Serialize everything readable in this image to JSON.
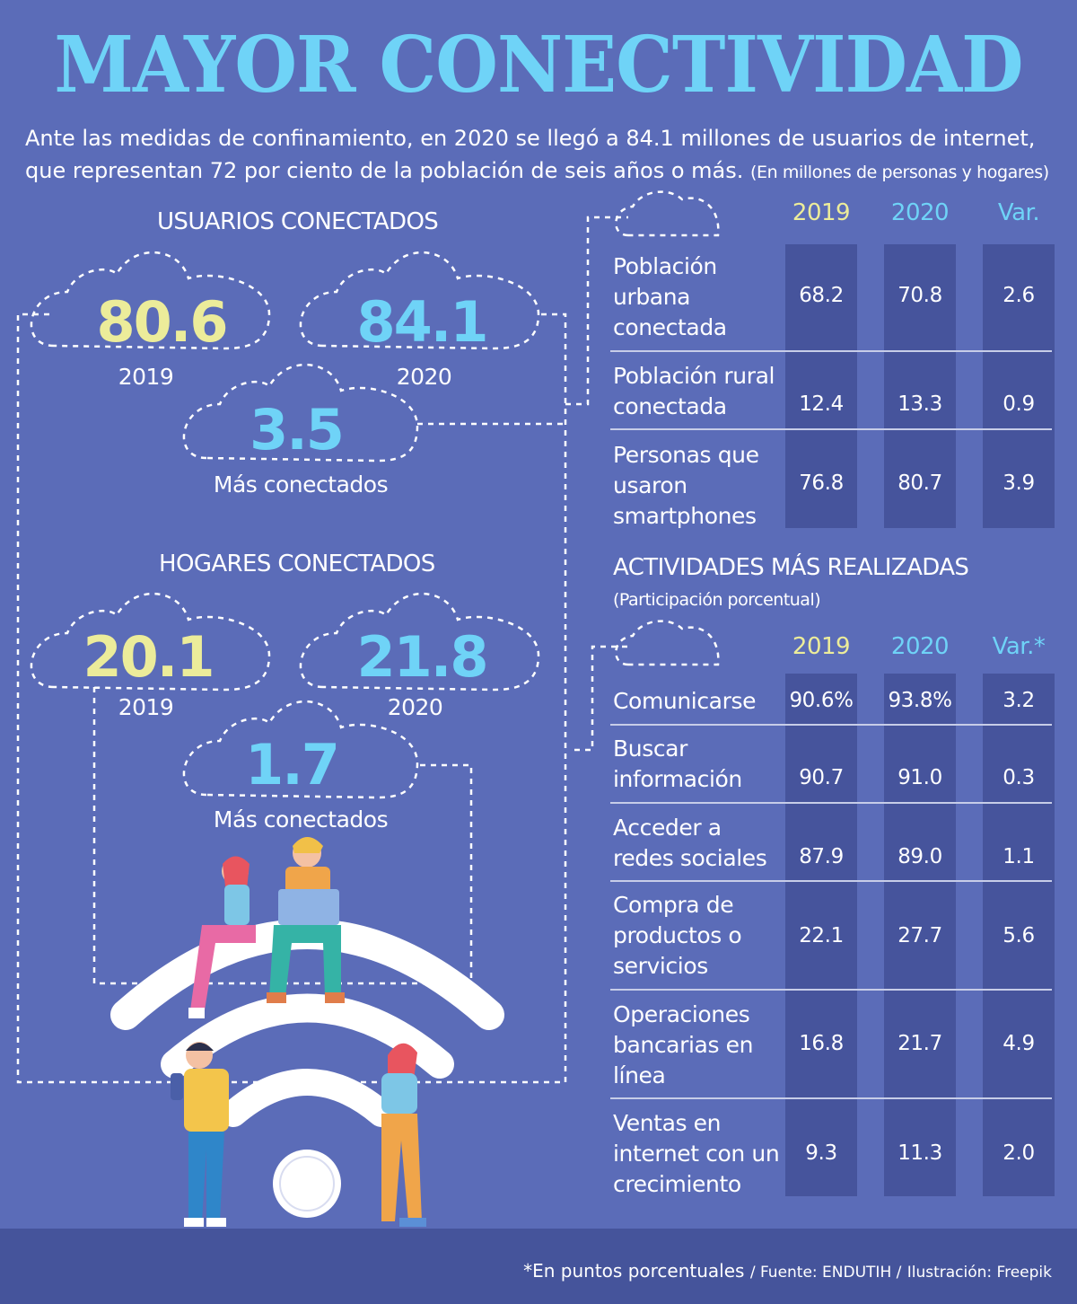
{
  "title": "MAYOR CONECTIVIDAD",
  "intro": {
    "line1": "Ante las medidas de confinamiento, en 2020 se llegó a 84.1 millones de usuarios de internet,",
    "line2": "que representan 72 por ciento de la población de seis años o más.",
    "note": "(En millones de personas y hogares)"
  },
  "usuarios": {
    "title": "USUARIOS CONECTADOS",
    "v2019": "80.6",
    "y2019": "2019",
    "v2020": "84.1",
    "y2020": "2020",
    "diff": "3.5",
    "diff_label": "Más conectados"
  },
  "hogares": {
    "title": "HOGARES CONECTADOS",
    "v2019": "20.1",
    "y2019": "2019",
    "v2020": "21.8",
    "y2020": "2020",
    "diff": "1.7",
    "diff_label": "Más conectados"
  },
  "table1": {
    "headers": [
      "2019",
      "2020",
      "Var."
    ],
    "rows": [
      {
        "label": "Población urbana conectada",
        "v2019": "68.2",
        "v2020": "70.8",
        "var": "2.6"
      },
      {
        "label": "Población rural conectada",
        "v2019": "12.4",
        "v2020": "13.3",
        "var": "0.9"
      },
      {
        "label": "Personas que usaron smartphones",
        "v2019": "76.8",
        "v2020": "80.7",
        "var": "3.9"
      }
    ]
  },
  "actividades": {
    "title": "ACTIVIDADES MÁS REALIZADAS",
    "subtitle": "(Participación porcentual)",
    "headers": [
      "2019",
      "2020",
      "Var.*"
    ],
    "rows": [
      {
        "label": "Comunicarse",
        "v2019": "90.6%",
        "v2020": "93.8%",
        "var": "3.2"
      },
      {
        "label": "Buscar información",
        "v2019": "90.7",
        "v2020": "91.0",
        "var": "0.3"
      },
      {
        "label": "Acceder a redes sociales",
        "v2019": "87.9",
        "v2020": "89.0",
        "var": "1.1"
      },
      {
        "label": "Compra de productos o servicios",
        "v2019": "22.1",
        "v2020": "27.7",
        "var": "5.6"
      },
      {
        "label": "Operaciones bancarias en línea",
        "v2019": "16.8",
        "v2020": "21.7",
        "var": "4.9"
      },
      {
        "label": "Ventas en internet con un crecimiento",
        "v2019": "9.3",
        "v2020": "11.3",
        "var": "2.0"
      }
    ]
  },
  "footer": {
    "note": "*En puntos porcentuales",
    "source": "/ Fuente: ENDUTIH /",
    "credit": "Ilustración: Freepik"
  },
  "colors": {
    "background": "#5b6cb8",
    "title": "#6fd3f7",
    "value_2019": "#ecec9a",
    "value_2020": "#6fd3f7",
    "table_column": "#46549c",
    "footer_band": "#45549b"
  },
  "illustration": "wifi-signal-with-people-icon"
}
